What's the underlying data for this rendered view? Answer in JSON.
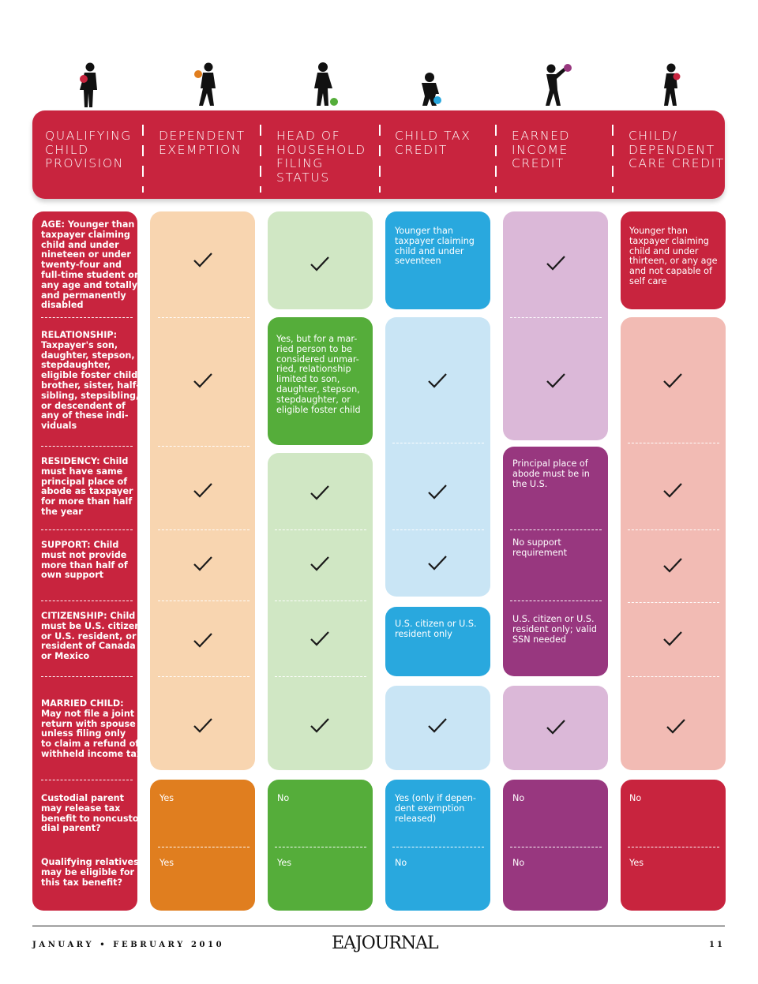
{
  "columns": [
    {
      "label": "QUALIFYING\nCHILD\nPROVISION"
    },
    {
      "label": "DEPENDENT\nEXEMPTION"
    },
    {
      "label": "HEAD OF\nHOUSEHOLD\nFILING\nSTATUS"
    },
    {
      "label": "CHILD TAX\nCREDIT"
    },
    {
      "label": "EARNED\nINCOME\nCREDIT"
    },
    {
      "label": "CHILD/\nDEPENDENT\nCARE CREDIT"
    }
  ],
  "provisions": [
    {
      "text": "AGE: Younger than\ntaxpayer claiming\nchild and under\nnineteen or under\ntwenty-four and\nfull-time student or\nany age and totally\nand permanently\ndisabled"
    },
    {
      "text": "RELATIONSHIP:\nTaxpayer's son,\ndaughter, stepson,\nstepdaughter,\neligible foster child,\nbrother, sister, half-\nsibling, stepsibling,\nor descendent of\nany of these indi-\nviduals"
    },
    {
      "text": "RESIDENCY: Child\nmust have same\nprincipal place of\nabode as taxpayer\nfor more than half\nthe year"
    },
    {
      "text": "SUPPORT: Child\nmust not provide\nmore than half of\nown support"
    },
    {
      "text": "CITIZENSHIP: Child\nmust be U.S. citizen\nor U.S. resident, or\nresident of Canada\nor Mexico"
    },
    {
      "text": "MARRIED CHILD:\nMay not file a joint\nreturn with spouse\nunless filing only\nto claim a refund of\nwithheld income tax"
    },
    {
      "text": "Custodial parent\nmay release tax\nbenefit to noncusto-\ndial parent?"
    },
    {
      "text": "Qualifying relatives\nmay be eligible for\nthis tax benefit?"
    }
  ],
  "cells": {
    "hoh_relationship": "Yes, but for a mar-\nried person to be\nconsidered unmar-\nried, relationship\nlimited to son,\ndaughter, stepson,\nstepdaughter, or\neligible foster child",
    "ctc_age": "Younger than\ntaxpayer claiming\nchild and under\nseventeen",
    "ctc_citizenship": "U.S. citizen or U.S.\nresident only",
    "eic_residency": "Principal place of\nabode must be in\nthe U.S.",
    "eic_support": "No support\nrequirement",
    "eic_citizenship": "U.S. citizen or U.S.\nresident only; valid\nSSN needed",
    "dcc_age": "Younger than\ntaxpayer claiming\nchild and under\nthirteen, or any age\nand not capable of\nself care"
  },
  "bottom": {
    "custodial": [
      "Yes",
      "No",
      "Yes (only if depen-\ndent exemption\nreleased)",
      "No",
      "No"
    ],
    "relatives": [
      "Yes",
      "Yes",
      "No",
      "No",
      "Yes"
    ]
  },
  "colors": {
    "red": "#c8243e",
    "dependent_light": "#f8d5b0",
    "dependent_dark": "#e07e1f",
    "hoh_light": "#d0e7c4",
    "hoh_dark": "#55ad3a",
    "ctc_light": "#c9e5f5",
    "ctc_dark": "#29a8de",
    "eic_light": "#dbb8d8",
    "eic_dark": "#98377f",
    "dcc_light": "#f2bbb4",
    "dcc_dark": "#c8243e"
  },
  "icons": [
    "child-silhouette-icon",
    "check-icon"
  ],
  "footer": {
    "date": "JANUARY • FEBRUARY 2010",
    "logo": "EAJOURNAL",
    "page": "11"
  }
}
